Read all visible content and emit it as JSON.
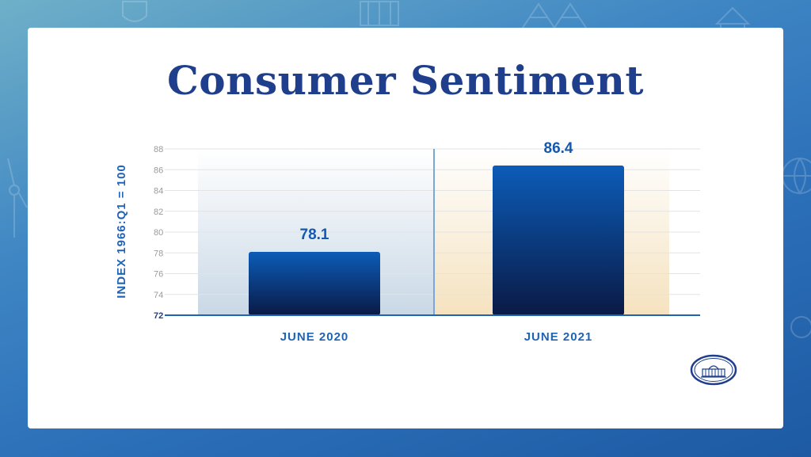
{
  "title": "Consumer Sentiment",
  "chart_data": {
    "type": "bar",
    "title": "Consumer Sentiment",
    "categories": [
      "JUNE 2020",
      "JUNE 2021"
    ],
    "values": [
      78.1,
      86.4
    ],
    "value_labels": [
      "78.1",
      "86.4"
    ],
    "ylabel": "INDEX 1966:Q1 = 100",
    "xlabel": "",
    "ylim": [
      72,
      88
    ],
    "yticks": [
      72,
      74,
      76,
      78,
      80,
      82,
      84,
      86,
      88
    ],
    "grid": true,
    "colors": {
      "bar_top": "#0c5cb8",
      "bar_bottom": "#0a1a45",
      "panel_left": "#c9d8e6",
      "panel_right": "#f5e2bf",
      "axis": "#1f63b5",
      "label": "#1f63b5",
      "grid": "#e3e3e3",
      "tick": "#9a9a9a"
    }
  },
  "seal_icon": "white-house-seal-icon"
}
